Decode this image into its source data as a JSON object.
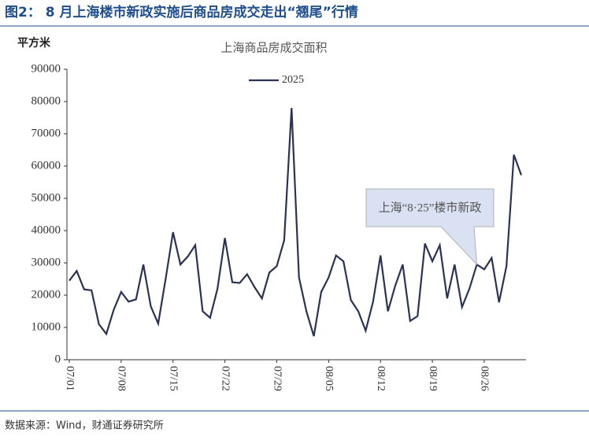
{
  "figure_title": "图2： 8 月上海楼市新政实施后商品房成交走出“翘尾”行情",
  "source": "数据来源：Wind，财通证券研究所",
  "chart_data": {
    "type": "line",
    "title": "上海商品房成交面积",
    "y_label": "平方米",
    "categories": [
      "07/01",
      null,
      null,
      null,
      null,
      null,
      null,
      "07/08",
      null,
      null,
      null,
      null,
      null,
      null,
      "07/15",
      null,
      null,
      null,
      null,
      null,
      null,
      "07/22",
      null,
      null,
      null,
      null,
      null,
      null,
      "07/29",
      null,
      null,
      null,
      null,
      null,
      null,
      "08/05",
      null,
      null,
      null,
      null,
      null,
      null,
      "08/12",
      null,
      null,
      null,
      null,
      null,
      null,
      "08/19",
      null,
      null,
      null,
      null,
      null,
      null,
      "08/26",
      null,
      null,
      null,
      null,
      null
    ],
    "series": [
      {
        "name": "2025",
        "color": "#2b3352",
        "values": [
          24500,
          27500,
          21800,
          21500,
          11000,
          8000,
          15500,
          21000,
          18000,
          18700,
          29500,
          16500,
          11200,
          25000,
          39500,
          29500,
          32000,
          35500,
          15000,
          13000,
          22000,
          37700,
          24000,
          23800,
          26500,
          22500,
          19000,
          27000,
          29000,
          37000,
          78000,
          25500,
          15000,
          7300,
          21000,
          25500,
          32300,
          30500,
          18500,
          15000,
          9000,
          18000,
          32300,
          15000,
          23000,
          29500,
          12000,
          13500,
          36000,
          30500,
          35500,
          19000,
          29500,
          16300,
          22000,
          29500,
          28000,
          31500,
          17800,
          29000,
          63500,
          57200
        ]
      }
    ],
    "ylim": [
      0,
      90000
    ],
    "yticks": [
      0,
      10000,
      20000,
      30000,
      40000,
      50000,
      60000,
      70000,
      80000,
      90000
    ],
    "legend": "top",
    "annotations": [
      {
        "text": "上海“8·25”楼市新政",
        "index": 55
      }
    ]
  }
}
